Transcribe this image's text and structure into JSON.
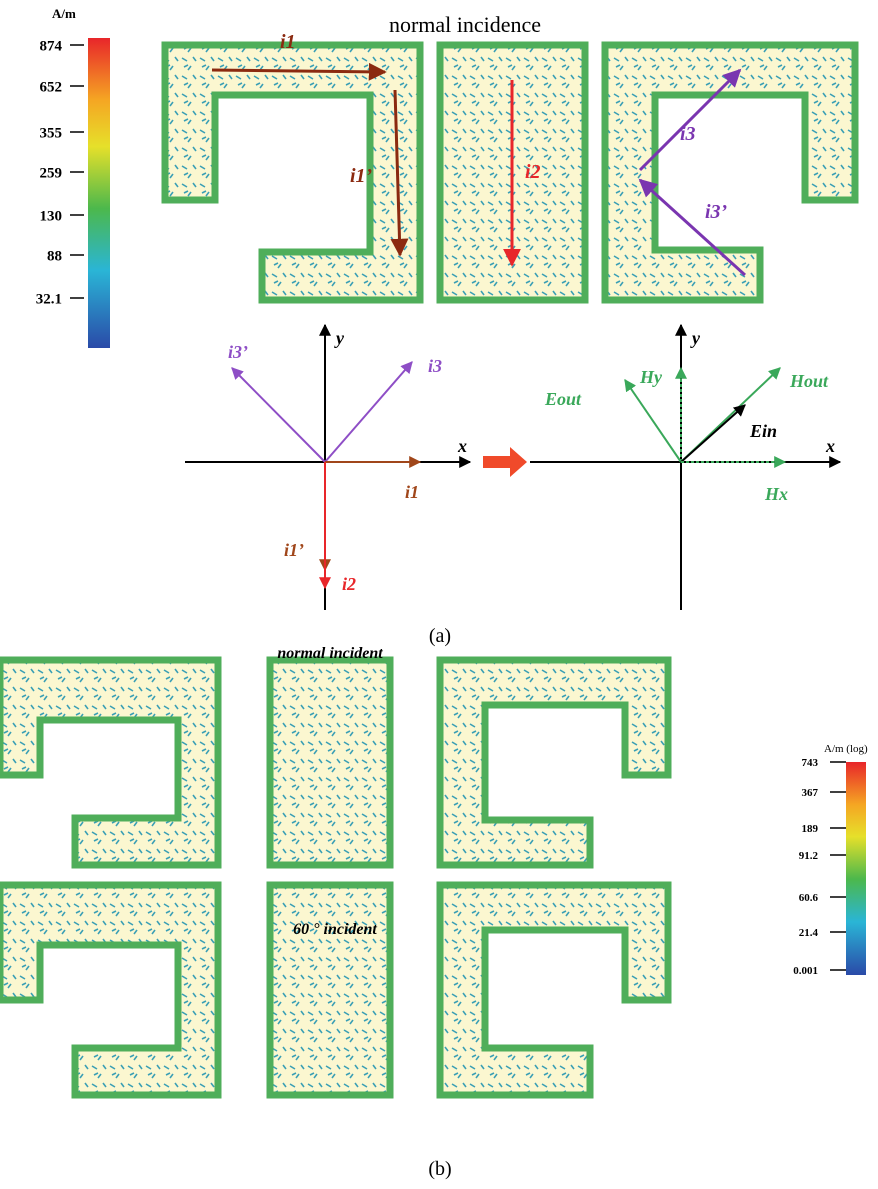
{
  "panel_a": {
    "colorbar": {
      "unit": "A/m",
      "ticks": [
        "874",
        "652",
        "355",
        "259",
        "130",
        "88",
        "32.1"
      ]
    },
    "title": "normal incidence",
    "current_labels": [
      "i1",
      "i1’",
      "i2",
      "i3",
      "i3’"
    ],
    "left_axes": {
      "x": "x",
      "y": "y",
      "vectors": [
        "i3’",
        "i3",
        "i1",
        "i1’",
        "i2"
      ]
    },
    "right_axes": {
      "x": "x",
      "y": "y",
      "vectors": [
        "Eout",
        "Hy",
        "Hout",
        "Ein",
        "Hx"
      ]
    },
    "caption": "(a)"
  },
  "panel_b": {
    "row_labels": [
      "normal incident",
      "60 °  incident"
    ],
    "colorbar": {
      "unit": "A/m (log)",
      "ticks": [
        "743",
        "367",
        "189",
        "91.2",
        "60.6",
        "21.4",
        "0.001"
      ]
    },
    "caption": "(b)"
  }
}
